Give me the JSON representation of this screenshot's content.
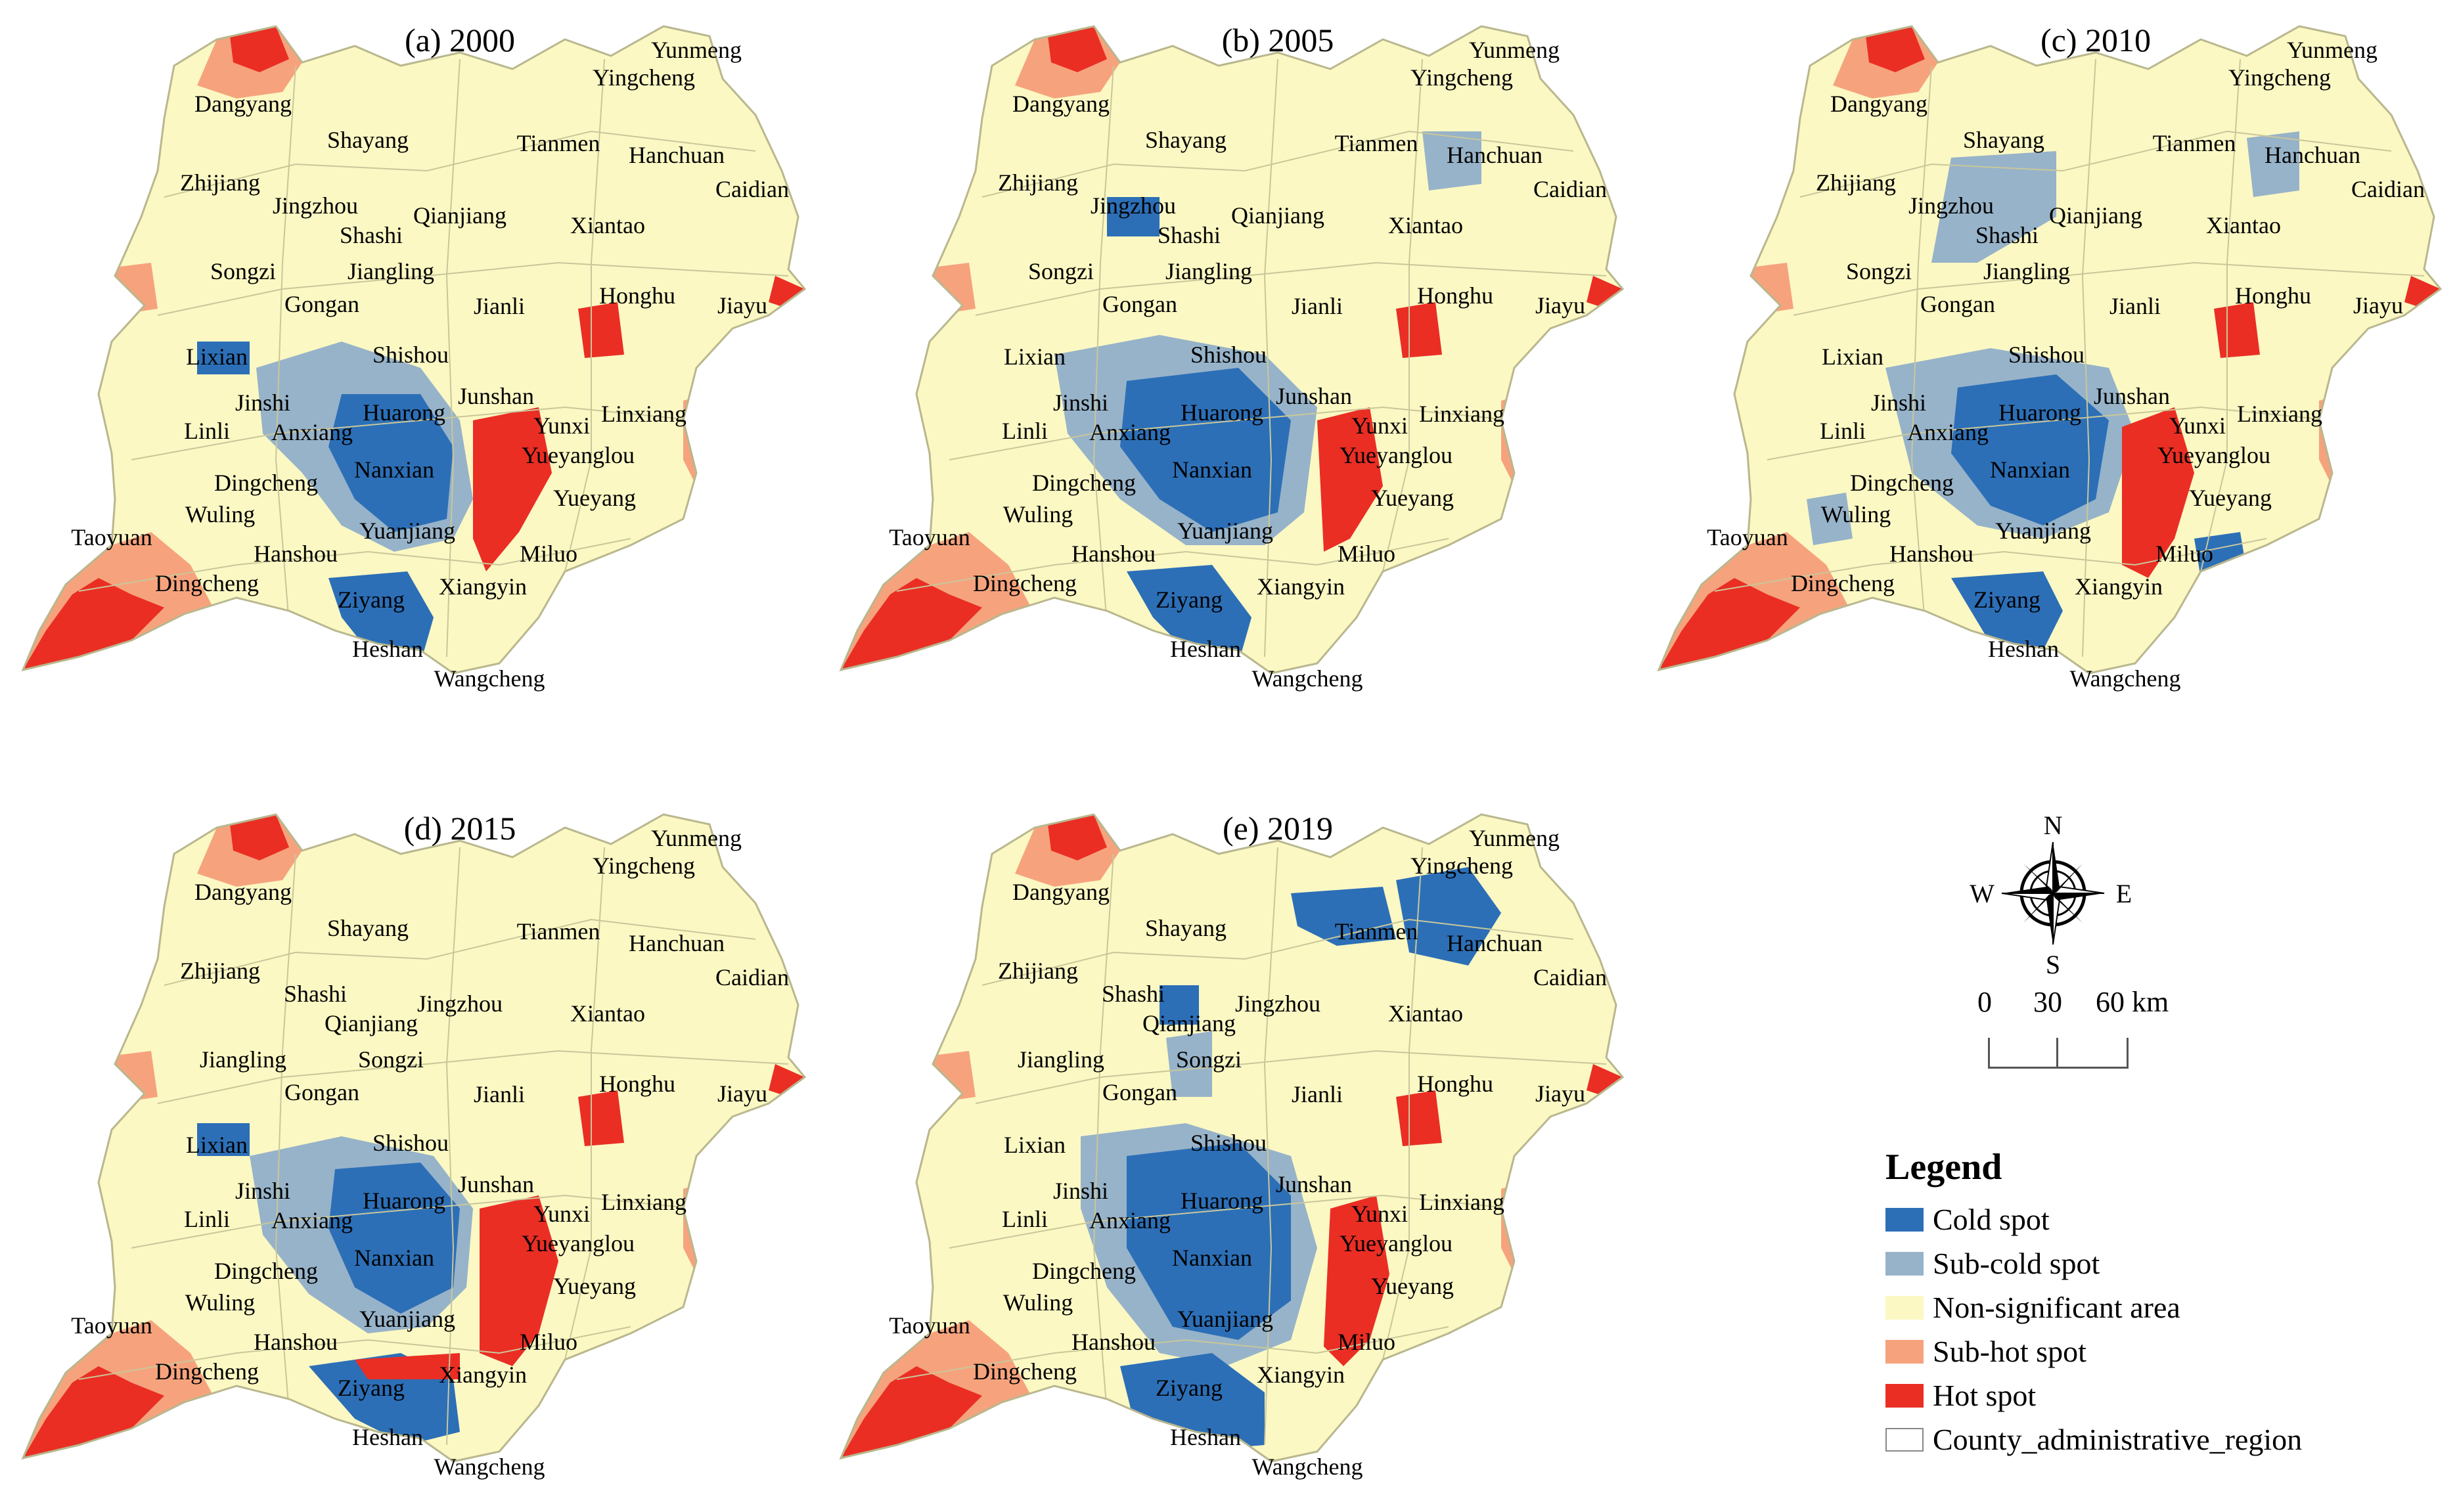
{
  "legend": {
    "title": "Legend",
    "items": [
      {
        "label": "Cold spot",
        "color": "#2c6fb7"
      },
      {
        "label": "Sub-cold spot",
        "color": "#97b3c9"
      },
      {
        "label": "Non-significant area",
        "color": "#fbf8c3"
      },
      {
        "label": "Sub-hot spot",
        "color": "#f6a37d"
      },
      {
        "label": "Hot spot",
        "color": "#ea2e24"
      },
      {
        "label": "County_administrative_region",
        "color": "#ffffff"
      }
    ]
  },
  "north_arrow": {
    "n": "N",
    "s": "S",
    "e": "E",
    "w": "W",
    "icon": "compass-rose-icon"
  },
  "scale_bar": {
    "labels": [
      "0",
      "30",
      "60 km"
    ]
  },
  "panels": [
    {
      "title": "(a) 2000",
      "labels": [
        "Yunmeng",
        "Yingcheng",
        "Dangyang",
        "Shayang",
        "Tianmen",
        "Hanchuan",
        "Caidian",
        "Zhijiang",
        "Jingzhou",
        "Qianjiang",
        "Shashi",
        "Xiantao",
        "Songzi",
        "Jiangling",
        "Gongan",
        "Jianli",
        "Honghu",
        "Jiayu",
        "Lixian",
        "Shishou",
        "Jinshi",
        "Huarong",
        "Junshan",
        "Linli",
        "Anxiang",
        "Yunxi",
        "Linxiang",
        "Yueyanglou",
        "Dingcheng",
        "Nanxian",
        "Wuling",
        "Yueyang",
        "Taoyuan",
        "Yuanjiang",
        "Hanshou",
        "Miluo",
        "Dingcheng",
        "Xiangyin",
        "Ziyang",
        "Heshan",
        "Wangcheng"
      ]
    },
    {
      "title": "(b) 2005",
      "labels": [
        "Yunmeng",
        "Yingcheng",
        "Dangyang",
        "Shayang",
        "Tianmen",
        "Hanchuan",
        "Caidian",
        "Zhijiang",
        "Jingzhou",
        "Qianjiang",
        "Shashi",
        "Xiantao",
        "Songzi",
        "Jiangling",
        "Gongan",
        "Jianli",
        "Honghu",
        "Jiayu",
        "Lixian",
        "Shishou",
        "Jinshi",
        "Huarong",
        "Junshan",
        "Linli",
        "Anxiang",
        "Yunxi",
        "Linxiang",
        "Yueyanglou",
        "Dingcheng",
        "Nanxian",
        "Wuling",
        "Yueyang",
        "Taoyuan",
        "Yuanjiang",
        "Hanshou",
        "Miluo",
        "Dingcheng",
        "Xiangyin",
        "Ziyang",
        "Heshan",
        "Wangcheng"
      ]
    },
    {
      "title": "(c) 2010",
      "labels": [
        "Yunmeng",
        "Yingcheng",
        "Dangyang",
        "Shayang",
        "Tianmen",
        "Hanchuan",
        "Caidian",
        "Zhijiang",
        "Jingzhou",
        "Qianjiang",
        "Shashi",
        "Xiantao",
        "Songzi",
        "Jiangling",
        "Gongan",
        "Jianli",
        "Honghu",
        "Jiayu",
        "Lixian",
        "Shishou",
        "Jinshi",
        "Huarong",
        "Junshan",
        "Linli",
        "Anxiang",
        "Yunxi",
        "Linxiang",
        "Yueyanglou",
        "Dingcheng",
        "Nanxian",
        "Wuling",
        "Yueyang",
        "Taoyuan",
        "Yuanjiang",
        "Hanshou",
        "Miluo",
        "Dingcheng",
        "Xiangyin",
        "Ziyang",
        "Heshan",
        "Wangcheng"
      ]
    },
    {
      "title": "(d) 2015",
      "labels": [
        "Yunmeng",
        "Yingcheng",
        "Dangyang",
        "Shayang",
        "Tianmen",
        "Hanchuan",
        "Caidian",
        "Zhijiang",
        "Shashi",
        "Jingzhou",
        "Qianjiang",
        "Xiantao",
        "Jiangling",
        "Songzi",
        "Gongan",
        "Jianli",
        "Honghu",
        "Jiayu",
        "Lixian",
        "Shishou",
        "Jinshi",
        "Huarong",
        "Junshan",
        "Linli",
        "Anxiang",
        "Yunxi",
        "Linxiang",
        "Yueyanglou",
        "Dingcheng",
        "Nanxian",
        "Wuling",
        "Yueyang",
        "Taoyuan",
        "Yuanjiang",
        "Hanshou",
        "Miluo",
        "Dingcheng",
        "Xiangyin",
        "Ziyang",
        "Heshan",
        "Wangcheng"
      ]
    },
    {
      "title": "(e) 2019",
      "labels": [
        "Yunmeng",
        "Yingcheng",
        "Dangyang",
        "Shayang",
        "Tianmen",
        "Hanchuan",
        "Caidian",
        "Zhijiang",
        "Shashi",
        "Jingzhou",
        "Qianjiang",
        "Xiantao",
        "Jiangling",
        "Songzi",
        "Gongan",
        "Jianli",
        "Honghu",
        "Jiayu",
        "Lixian",
        "Shishou",
        "Jinshi",
        "Huarong",
        "Junshan",
        "Linli",
        "Anxiang",
        "Yunxi",
        "Linxiang",
        "Yueyanglou",
        "Dingcheng",
        "Nanxian",
        "Wuling",
        "Yueyang",
        "Taoyuan",
        "Yuanjiang",
        "Hanshou",
        "Miluo",
        "Dingcheng",
        "Xiangyin",
        "Ziyang",
        "Heshan",
        "Wangcheng"
      ]
    }
  ]
}
